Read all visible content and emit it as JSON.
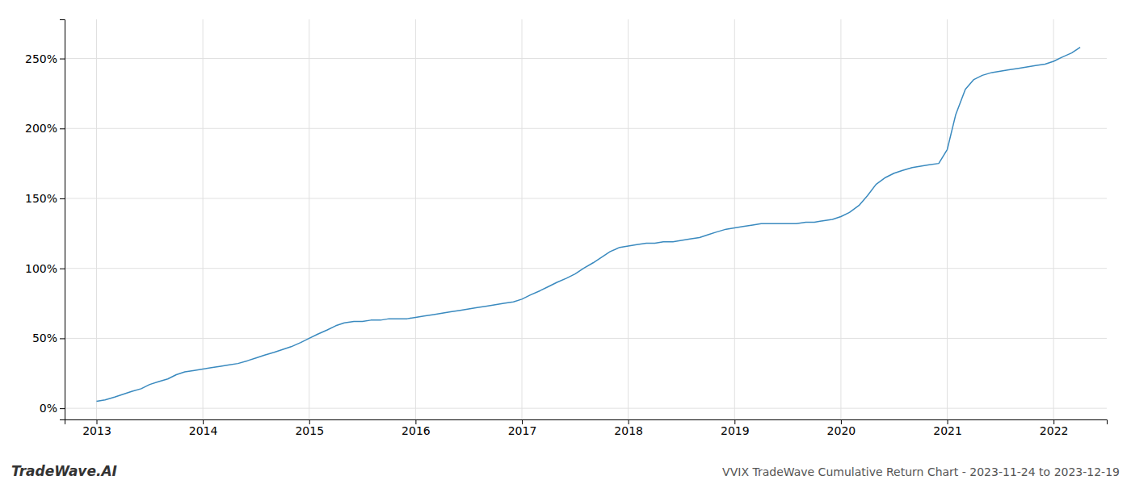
{
  "chart_data": {
    "type": "line",
    "title": "VVIX TradeWave Cumulative Return Chart - 2023-11-24 to 2023-12-19",
    "annotations": [
      "TradeWave.AI"
    ],
    "x": [
      2013.0,
      2013.08,
      2013.17,
      2013.25,
      2013.33,
      2013.42,
      2013.5,
      2013.58,
      2013.67,
      2013.75,
      2013.83,
      2013.92,
      2014.0,
      2014.08,
      2014.17,
      2014.25,
      2014.33,
      2014.42,
      2014.5,
      2014.58,
      2014.67,
      2014.75,
      2014.83,
      2014.92,
      2015.0,
      2015.08,
      2015.17,
      2015.25,
      2015.33,
      2015.42,
      2015.5,
      2015.58,
      2015.67,
      2015.75,
      2015.83,
      2015.92,
      2016.0,
      2016.08,
      2016.17,
      2016.25,
      2016.33,
      2016.42,
      2016.5,
      2016.58,
      2016.67,
      2016.75,
      2016.83,
      2016.92,
      2017.0,
      2017.08,
      2017.17,
      2017.25,
      2017.33,
      2017.42,
      2017.5,
      2017.58,
      2017.67,
      2017.75,
      2017.83,
      2017.92,
      2018.0,
      2018.08,
      2018.17,
      2018.25,
      2018.33,
      2018.42,
      2018.5,
      2018.58,
      2018.67,
      2018.75,
      2018.83,
      2018.92,
      2019.0,
      2019.08,
      2019.17,
      2019.25,
      2019.33,
      2019.42,
      2019.5,
      2019.58,
      2019.67,
      2019.75,
      2019.83,
      2019.92,
      2020.0,
      2020.08,
      2020.17,
      2020.25,
      2020.33,
      2020.42,
      2020.5,
      2020.58,
      2020.67,
      2020.75,
      2020.83,
      2020.92,
      2021.0,
      2021.08,
      2021.17,
      2021.25,
      2021.33,
      2021.42,
      2021.5,
      2021.58,
      2021.67,
      2021.75,
      2021.83,
      2021.92,
      2022.0,
      2022.08,
      2022.17,
      2022.25
    ],
    "values": [
      5,
      6,
      8,
      10,
      12,
      14,
      17,
      19,
      21,
      24,
      26,
      27,
      28,
      29,
      30,
      31,
      32,
      34,
      36,
      38,
      40,
      42,
      44,
      47,
      50,
      53,
      56,
      59,
      61,
      62,
      62,
      63,
      63,
      64,
      64,
      64,
      65,
      66,
      67,
      68,
      69,
      70,
      71,
      72,
      73,
      74,
      75,
      76,
      78,
      81,
      84,
      87,
      90,
      93,
      96,
      100,
      104,
      108,
      112,
      115,
      116,
      117,
      118,
      118,
      119,
      119,
      120,
      121,
      122,
      124,
      126,
      128,
      129,
      130,
      131,
      132,
      132,
      132,
      132,
      132,
      133,
      133,
      134,
      135,
      137,
      140,
      145,
      152,
      160,
      165,
      168,
      170,
      172,
      173,
      174,
      175,
      185,
      210,
      228,
      235,
      238,
      240,
      241,
      242,
      243,
      244,
      245,
      246,
      248,
      251,
      254,
      258
    ],
    "color": "#3a8abf",
    "xlim": [
      2012.7,
      2022.5
    ],
    "ylim": [
      -8,
      278
    ],
    "xticks": [
      2013,
      2014,
      2015,
      2016,
      2017,
      2018,
      2019,
      2020,
      2021,
      2022
    ],
    "yticks": [
      {
        "value": 0,
        "label": "0%"
      },
      {
        "value": 50,
        "label": "50%"
      },
      {
        "value": 100,
        "label": "100%"
      },
      {
        "value": 150,
        "label": "150%"
      },
      {
        "value": 200,
        "label": "200%"
      },
      {
        "value": 250,
        "label": "250%"
      }
    ],
    "grid": true
  }
}
